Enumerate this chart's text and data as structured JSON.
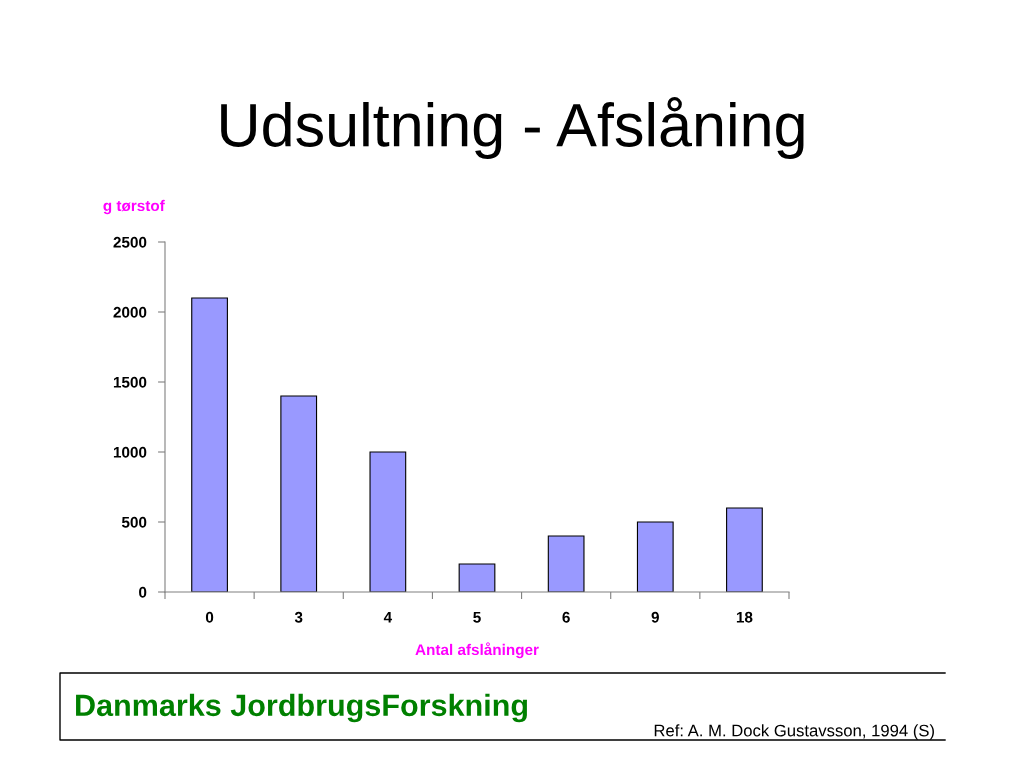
{
  "chart_data": {
    "type": "bar",
    "title": "Udsultning - Afslåning",
    "xlabel": "Antal afslåninger",
    "ylabel": "g tørstof",
    "categories": [
      "0",
      "3",
      "4",
      "5",
      "6",
      "9",
      "18"
    ],
    "values": [
      2100,
      1400,
      1000,
      200,
      400,
      500,
      600
    ],
    "color": "#9999ff",
    "ylim": [
      0,
      2500
    ],
    "yticks": [
      0,
      500,
      1000,
      1500,
      2000,
      2500
    ],
    "annotations": [
      "Danmarks JordbrugsForskning",
      "Ref: A. M. Dock Gustavsson, 1994 (S)"
    ]
  }
}
